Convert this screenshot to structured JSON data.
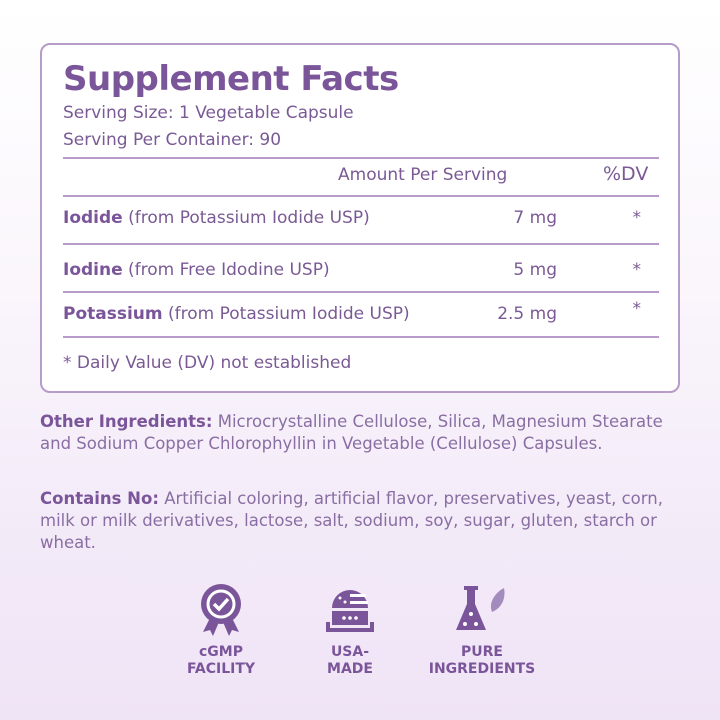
{
  "facts": {
    "title": "Supplement Facts",
    "serving_size": "Serving Size: 1 Vegetable Capsule",
    "servings_per_container": "Serving Per Container: 90",
    "col_amount": "Amount Per Serving",
    "col_dv": "%DV",
    "rows": [
      {
        "name": "Iodide",
        "source": "(from Potassium Iodide USP)",
        "amount": "7 mg",
        "dv": "*"
      },
      {
        "name": "Iodine",
        "source": "(from Free Idodine USP)",
        "amount": "5 mg",
        "dv": "*"
      },
      {
        "name": "Potassium",
        "source": "(from Potassium Iodide USP)",
        "amount": "2.5 mg",
        "dv": "*"
      }
    ],
    "footnote": "* Daily Value (DV) not established"
  },
  "other_ingredients": {
    "label": "Other Ingredients:",
    "text": "Microcrystalline Cellulose, Silica, Magnesium Stearate and Sodium Copper Chlorophyllin in Vegetable (Cellulose) Capsules."
  },
  "contains_no": {
    "label": "Contains No:",
    "text": "Artificial coloring, artificial flavor, preservatives, yeast, corn, milk or milk derivatives, lactose, salt, sodium, soy, sugar, gluten, starch or wheat."
  },
  "badges": [
    {
      "icon": "award-check-icon",
      "line1": "cGMP",
      "line2": "FACILITY"
    },
    {
      "icon": "usa-factory-icon",
      "line1": "USA-",
      "line2": "MADE"
    },
    {
      "icon": "flask-leaf-icon",
      "line1": "PURE",
      "line2": "INGREDIENTS"
    }
  ],
  "colors": {
    "primary": "#7b559a",
    "border": "#b79bc8"
  }
}
